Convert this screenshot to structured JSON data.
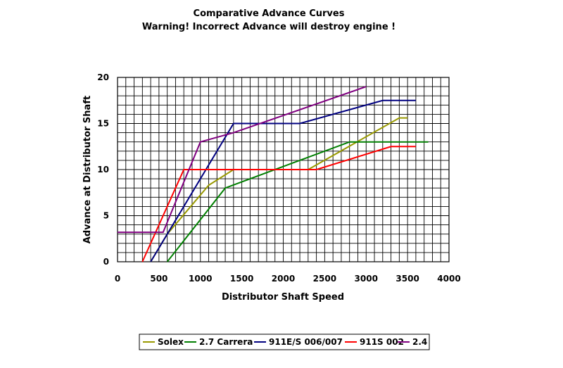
{
  "chart_data": {
    "type": "line",
    "title": "Comparative Advance Curves",
    "subtitle": "Warning!  Incorrect Advance will destroy engine !",
    "xlabel": "Distributor Shaft Speed",
    "ylabel": "Advance at Distributor Shaft",
    "xlim": [
      0,
      4000
    ],
    "ylim": [
      0,
      20
    ],
    "x_ticks": [
      0,
      500,
      1000,
      1500,
      2000,
      2500,
      3000,
      3500,
      4000
    ],
    "y_ticks": [
      0,
      5,
      10,
      15,
      20
    ],
    "x_tick_labels": [
      "0",
      "500",
      "1000",
      "1500",
      "2000",
      "2500",
      "3000",
      "3500",
      "4000"
    ],
    "y_tick_labels": [
      "0",
      "5",
      "10",
      "15",
      "20"
    ],
    "grid": true,
    "grid_x_step": 100,
    "grid_y_step": 1,
    "legend_position": "bottom",
    "series": [
      {
        "name": "Solex",
        "color": "#999900",
        "x": [
          400,
          600,
          1100,
          1400,
          2300,
          3400,
          3500
        ],
        "y": [
          0,
          3,
          8.3,
          10,
          10,
          15.6,
          15.6
        ]
      },
      {
        "name": "2.7 Carrera",
        "color": "#007F00",
        "x": [
          600,
          1300,
          2800,
          3750
        ],
        "y": [
          0,
          8,
          13,
          13
        ]
      },
      {
        "name": "911E/S 006/007",
        "color": "#000080",
        "x": [
          400,
          1400,
          2200,
          3200,
          3600
        ],
        "y": [
          0,
          15,
          15,
          17.5,
          17.5
        ]
      },
      {
        "name": "911S 002",
        "color": "#FF0000",
        "x": [
          300,
          800,
          2400,
          3300,
          3600
        ],
        "y": [
          0,
          10,
          10,
          12.5,
          12.5
        ]
      },
      {
        "name": "2.4",
        "color": "#800080",
        "x": [
          0,
          550,
          1000,
          1400,
          3000
        ],
        "y": [
          3.2,
          3.2,
          13,
          14,
          19
        ]
      }
    ]
  }
}
